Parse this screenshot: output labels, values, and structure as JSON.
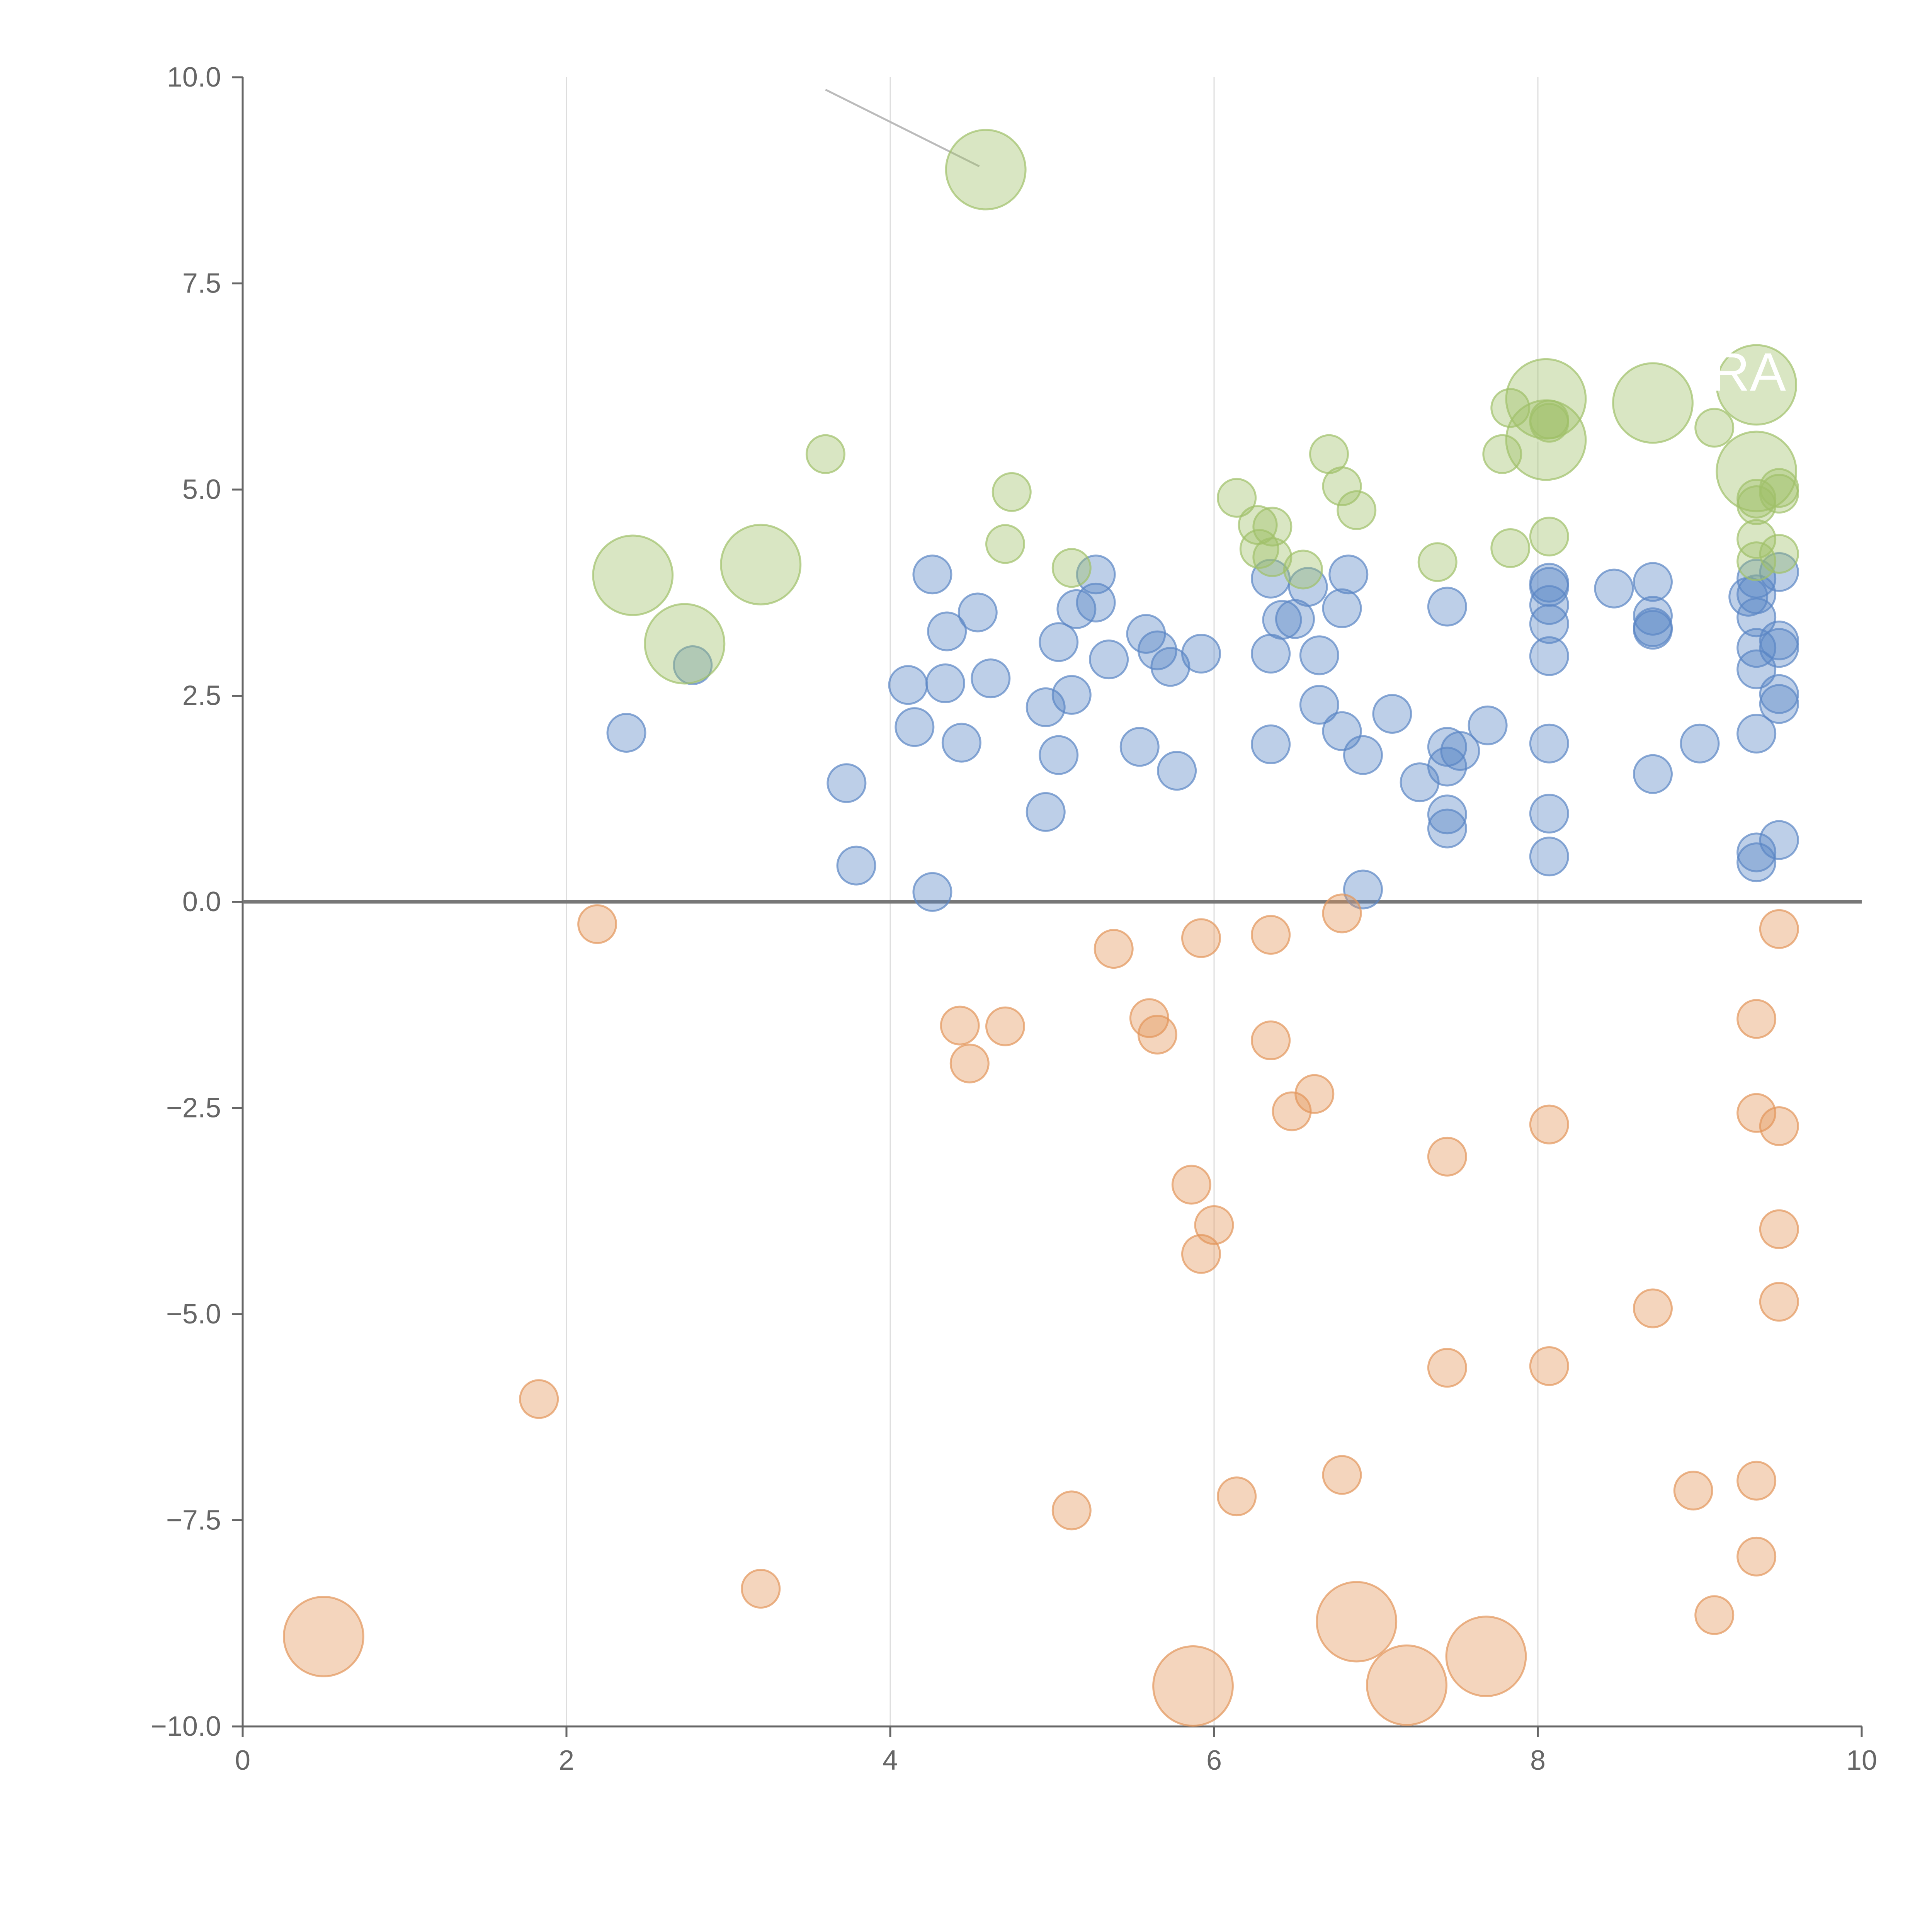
{
  "chart_data": {
    "type": "scatter",
    "title": "",
    "xlabel": "",
    "ylabel": "",
    "xlim": [
      0,
      10
    ],
    "ylim": [
      -10,
      10
    ],
    "x_ticks": [
      "0",
      "2",
      "4",
      "6",
      "8",
      "10"
    ],
    "y_ticks": [
      "10.0",
      "7.5",
      "5.0",
      "2.5",
      "0.0",
      "−2.5",
      "−5.0",
      "−7.5",
      "−10.0"
    ],
    "grid": "vertical",
    "zero_line": true,
    "series": [
      {
        "color": "#5b86c5",
        "points": [
          [
            2.37,
            2.05,
            1
          ],
          [
            2.78,
            2.87,
            1
          ],
          [
            3.73,
            1.44,
            1
          ],
          [
            3.79,
            0.44,
            1
          ],
          [
            4.11,
            2.63,
            1
          ],
          [
            4.15,
            2.12,
            1
          ],
          [
            4.26,
            3.97,
            1
          ],
          [
            4.26,
            0.12,
            1
          ],
          [
            4.34,
            2.65,
            1
          ],
          [
            4.35,
            3.28,
            1
          ],
          [
            4.44,
            1.93,
            1
          ],
          [
            4.54,
            3.51,
            1
          ],
          [
            4.62,
            2.71,
            1
          ],
          [
            4.96,
            2.36,
            1
          ],
          [
            4.96,
            1.09,
            1
          ],
          [
            5.04,
            3.15,
            1
          ],
          [
            5.04,
            1.78,
            1
          ],
          [
            5.12,
            2.51,
            1
          ],
          [
            5.15,
            3.55,
            1
          ],
          [
            5.27,
            3.97,
            1
          ],
          [
            5.27,
            3.63,
            1
          ],
          [
            5.35,
            2.94,
            1
          ],
          [
            5.54,
            1.88,
            1
          ],
          [
            5.58,
            3.25,
            1
          ],
          [
            5.65,
            3.05,
            1
          ],
          [
            5.73,
            2.85,
            1
          ],
          [
            5.77,
            1.59,
            1
          ],
          [
            5.92,
            3.01,
            1
          ],
          [
            6.35,
            3.92,
            1
          ],
          [
            6.35,
            3.01,
            1
          ],
          [
            6.35,
            1.91,
            1
          ],
          [
            6.42,
            3.42,
            1
          ],
          [
            6.5,
            3.43,
            1
          ],
          [
            6.58,
            3.82,
            1
          ],
          [
            6.65,
            2.99,
            1
          ],
          [
            6.65,
            2.39,
            1
          ],
          [
            6.79,
            3.56,
            1
          ],
          [
            6.79,
            2.07,
            1
          ],
          [
            6.83,
            3.97,
            1
          ],
          [
            6.92,
            1.78,
            1
          ],
          [
            6.92,
            0.15,
            1
          ],
          [
            7.1,
            2.28,
            1
          ],
          [
            7.27,
            1.45,
            1
          ],
          [
            7.44,
            3.58,
            1
          ],
          [
            7.44,
            1.88,
            1
          ],
          [
            7.44,
            1.64,
            1
          ],
          [
            7.44,
            1.06,
            1
          ],
          [
            7.44,
            0.89,
            1
          ],
          [
            7.52,
            1.83,
            1
          ],
          [
            7.69,
            2.14,
            1
          ],
          [
            8.07,
            3.87,
            1
          ],
          [
            8.07,
            3.82,
            1
          ],
          [
            8.07,
            3.6,
            1
          ],
          [
            8.07,
            3.37,
            1
          ],
          [
            8.07,
            2.98,
            1
          ],
          [
            8.07,
            1.92,
            1
          ],
          [
            8.07,
            1.07,
            1
          ],
          [
            8.07,
            0.55,
            1
          ],
          [
            8.47,
            3.8,
            1
          ],
          [
            8.71,
            3.88,
            1
          ],
          [
            8.71,
            3.47,
            1
          ],
          [
            8.71,
            3.33,
            1
          ],
          [
            8.71,
            3.3,
            1
          ],
          [
            8.71,
            1.55,
            1
          ],
          [
            9.0,
            1.92,
            1
          ],
          [
            9.35,
            3.92,
            1
          ],
          [
            9.35,
            3.73,
            1
          ],
          [
            9.35,
            3.45,
            1
          ],
          [
            9.35,
            3.08,
            1
          ],
          [
            9.35,
            2.82,
            1
          ],
          [
            9.35,
            2.04,
            1
          ],
          [
            9.35,
            0.6,
            1
          ],
          [
            9.35,
            0.48,
            1
          ],
          [
            9.3,
            3.7,
            1
          ],
          [
            9.49,
            4.0,
            1
          ],
          [
            9.49,
            3.17,
            1
          ],
          [
            9.49,
            3.08,
            1
          ],
          [
            9.49,
            2.52,
            1
          ],
          [
            9.49,
            2.4,
            1
          ],
          [
            9.49,
            0.75,
            1
          ]
        ]
      },
      {
        "color": "#e3955b",
        "points": [
          [
            0.5,
            -8.91,
            2.1
          ],
          [
            1.83,
            -6.03,
            1
          ],
          [
            2.19,
            -0.27,
            1
          ],
          [
            3.2,
            -8.33,
            1
          ],
          [
            4.43,
            -1.5,
            1
          ],
          [
            4.49,
            -1.96,
            1
          ],
          [
            4.71,
            -1.51,
            1
          ],
          [
            5.12,
            -7.38,
            1
          ],
          [
            5.38,
            -0.57,
            1
          ],
          [
            5.6,
            -1.41,
            1
          ],
          [
            5.65,
            -1.61,
            1
          ],
          [
            5.86,
            -3.43,
            1
          ],
          [
            5.87,
            -9.51,
            2.1
          ],
          [
            5.92,
            -0.44,
            1
          ],
          [
            5.92,
            -4.27,
            1
          ],
          [
            6.0,
            -3.92,
            1
          ],
          [
            6.14,
            -7.21,
            1
          ],
          [
            6.35,
            -0.4,
            1
          ],
          [
            6.35,
            -1.68,
            1
          ],
          [
            6.48,
            -2.54,
            1
          ],
          [
            6.62,
            -2.33,
            1
          ],
          [
            6.79,
            -0.14,
            1
          ],
          [
            6.79,
            -6.95,
            1
          ],
          [
            6.88,
            -8.73,
            2.1
          ],
          [
            7.19,
            -9.5,
            2.1
          ],
          [
            7.44,
            -3.09,
            1
          ],
          [
            7.44,
            -5.65,
            1
          ],
          [
            7.68,
            -9.15,
            2.1
          ],
          [
            8.07,
            -2.7,
            1
          ],
          [
            8.07,
            -5.63,
            1
          ],
          [
            8.71,
            -4.93,
            1
          ],
          [
            8.96,
            -7.14,
            1
          ],
          [
            9.09,
            -8.65,
            1
          ],
          [
            9.35,
            -1.42,
            1
          ],
          [
            9.35,
            -2.56,
            1
          ],
          [
            9.35,
            -7.02,
            1
          ],
          [
            9.35,
            -7.94,
            1
          ],
          [
            9.49,
            -0.33,
            1
          ],
          [
            9.49,
            -2.72,
            1
          ],
          [
            9.49,
            -3.97,
            1
          ],
          [
            9.49,
            -4.85,
            1
          ]
        ]
      },
      {
        "color": "#9fc16a",
        "points": [
          [
            2.41,
            3.96,
            2.1
          ],
          [
            2.73,
            3.13,
            2.1
          ],
          [
            3.2,
            4.09,
            2.1
          ],
          [
            3.6,
            5.43,
            1
          ],
          [
            4.59,
            8.88,
            2.1
          ],
          [
            4.71,
            4.34,
            1
          ],
          [
            4.75,
            4.97,
            1
          ],
          [
            5.12,
            4.05,
            1
          ],
          [
            6.14,
            4.9,
            1
          ],
          [
            6.27,
            4.57,
            1
          ],
          [
            6.28,
            4.28,
            1
          ],
          [
            6.36,
            4.55,
            1
          ],
          [
            6.36,
            4.18,
            1
          ],
          [
            6.55,
            4.03,
            1
          ],
          [
            6.71,
            5.43,
            1
          ],
          [
            6.79,
            5.04,
            1
          ],
          [
            6.88,
            4.75,
            1
          ],
          [
            7.38,
            4.12,
            1
          ],
          [
            7.78,
            5.43,
            1
          ],
          [
            7.83,
            4.29,
            1
          ],
          [
            7.83,
            5.99,
            1
          ],
          [
            8.05,
            6.1,
            2.1
          ],
          [
            8.05,
            5.6,
            2.1
          ],
          [
            8.07,
            5.85,
            1
          ],
          [
            8.07,
            5.81,
            1
          ],
          [
            8.07,
            4.43,
            1
          ],
          [
            8.71,
            6.05,
            2.1
          ],
          [
            9.09,
            5.75,
            1
          ],
          [
            9.35,
            6.27,
            2.1
          ],
          [
            9.35,
            5.22,
            2.1
          ],
          [
            9.35,
            4.89,
            1
          ],
          [
            9.35,
            4.81,
            1
          ],
          [
            9.35,
            4.4,
            1
          ],
          [
            9.35,
            4.13,
            1
          ],
          [
            9.49,
            5.02,
            1
          ],
          [
            9.49,
            4.95,
            1
          ],
          [
            9.49,
            4.22,
            1
          ]
        ]
      }
    ],
    "callout": {
      "text": "RA"
    }
  }
}
